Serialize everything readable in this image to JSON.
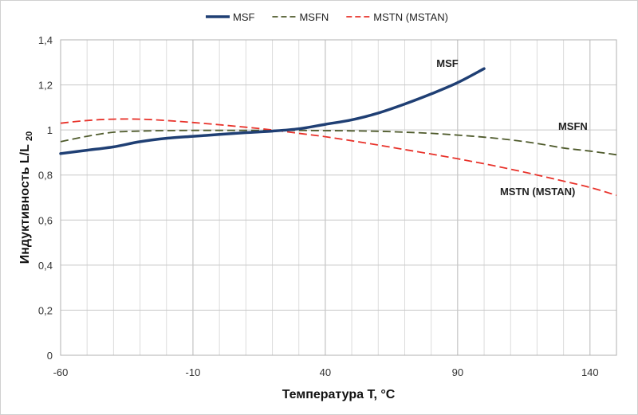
{
  "chart_data": {
    "type": "line",
    "title": "",
    "xlabel": "Температура T, °C",
    "ylabel": "Индуктивность L/L",
    "ylabel_subscript": "20",
    "xlim": [
      -60,
      150
    ],
    "ylim": [
      0,
      1.4
    ],
    "x_major_ticks": [
      -60,
      -10,
      40,
      90,
      140
    ],
    "x_tick_labels": [
      "-60",
      "-10",
      "40",
      "90",
      "140"
    ],
    "x_minor_step": 10,
    "y_ticks": [
      0,
      0.2,
      0.4,
      0.6,
      0.8,
      1,
      1.2,
      1.4
    ],
    "y_tick_labels": [
      "0",
      "0,2",
      "0,4",
      "0,6",
      "0,8",
      "1",
      "1,2",
      "1,4"
    ],
    "grid": true,
    "legend_position": "top-center",
    "series": [
      {
        "name": "MSF",
        "color": "#1f3f74",
        "dash": "solid",
        "x": [
          -60,
          -50,
          -40,
          -30,
          -20,
          -10,
          0,
          10,
          20,
          30,
          40,
          50,
          60,
          70,
          80,
          90,
          100
        ],
        "y": [
          0.895,
          0.91,
          0.925,
          0.948,
          0.963,
          0.972,
          0.98,
          0.988,
          0.995,
          1.005,
          1.025,
          1.045,
          1.075,
          1.115,
          1.16,
          1.21,
          1.272
        ],
        "annotation": "MSF",
        "annotation_at": [
          82,
          1.28
        ]
      },
      {
        "name": "MSFN",
        "color": "#4e5a2b",
        "dash": "dashed",
        "x": [
          -60,
          -50,
          -40,
          -30,
          -20,
          -10,
          0,
          10,
          20,
          30,
          40,
          50,
          60,
          70,
          80,
          90,
          100,
          110,
          120,
          130,
          140,
          150
        ],
        "y": [
          0.948,
          0.972,
          0.99,
          0.995,
          0.997,
          0.998,
          0.998,
          0.998,
          0.998,
          0.998,
          0.997,
          0.996,
          0.994,
          0.99,
          0.985,
          0.977,
          0.968,
          0.956,
          0.94,
          0.92,
          0.906,
          0.89
        ],
        "annotation": "MSFN",
        "annotation_at": [
          128,
          1.0
        ]
      },
      {
        "name": "MSTN (MSTAN)",
        "color": "#e8322a",
        "dash": "dashed",
        "x": [
          -60,
          -50,
          -40,
          -30,
          -20,
          -10,
          0,
          10,
          20,
          30,
          40,
          50,
          60,
          70,
          80,
          90,
          100,
          110,
          120,
          130,
          140,
          150
        ],
        "y": [
          1.03,
          1.042,
          1.048,
          1.048,
          1.042,
          1.033,
          1.023,
          1.012,
          1.0,
          0.985,
          0.97,
          0.952,
          0.933,
          0.913,
          0.893,
          0.872,
          0.85,
          0.826,
          0.8,
          0.773,
          0.745,
          0.71
        ],
        "annotation": "MSTN (MSTAN)",
        "annotation_at": [
          106,
          0.71
        ]
      }
    ]
  }
}
